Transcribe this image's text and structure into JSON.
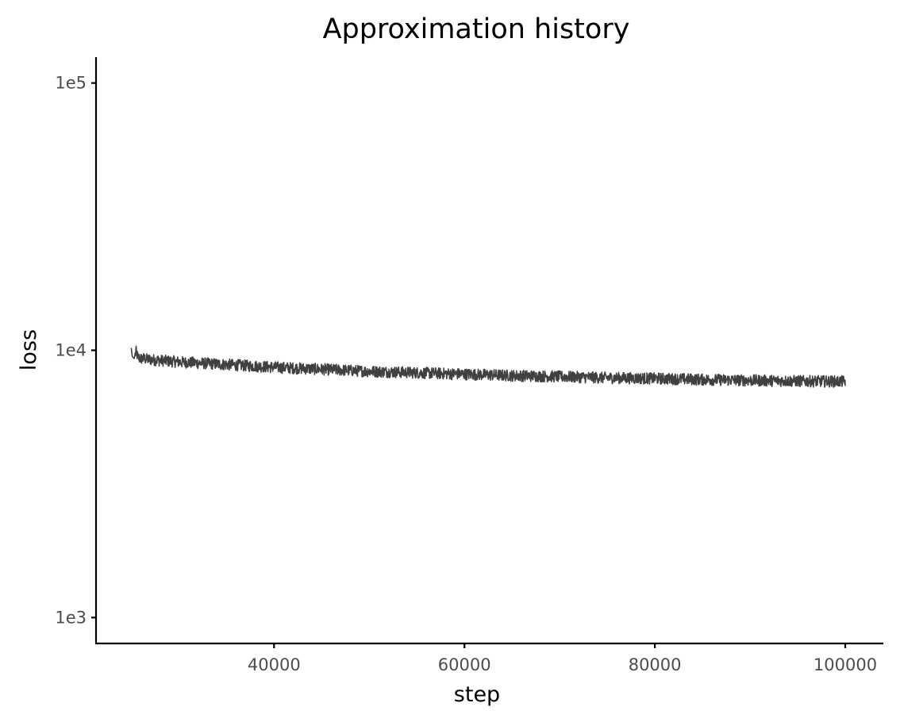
{
  "chart_data": {
    "type": "line",
    "title": "Approximation history",
    "xlabel": "step",
    "ylabel": "loss",
    "xlim": [
      21300,
      104000
    ],
    "ylim": [
      800,
      125000
    ],
    "yscale": "log",
    "grid": false,
    "line_color": "#404040",
    "x_ticks": [
      {
        "value": 40000,
        "label": "40000"
      },
      {
        "value": 60000,
        "label": "60000"
      },
      {
        "value": 80000,
        "label": "80000"
      },
      {
        "value": 100000,
        "label": "100000"
      }
    ],
    "y_ticks": [
      {
        "value": 1000,
        "label": "1e3"
      },
      {
        "value": 10000,
        "label": "1e4"
      },
      {
        "value": 100000,
        "label": "1e5"
      }
    ],
    "series": [
      {
        "x": [
          25000,
          25100,
          25300,
          25500,
          25700,
          26000,
          26300,
          26800,
          30000,
          35000,
          40000,
          45000,
          50000,
          55000,
          60000,
          65000,
          70000,
          75000,
          80000,
          85000,
          90000,
          95000,
          100000
        ],
        "y": [
          10200,
          9500,
          9300,
          9900,
          9400,
          9300,
          9320,
          9250,
          9050,
          8850,
          8650,
          8500,
          8350,
          8250,
          8150,
          8050,
          7980,
          7900,
          7850,
          7780,
          7720,
          7680,
          7650
        ],
        "noise": 0.05
      }
    ]
  }
}
